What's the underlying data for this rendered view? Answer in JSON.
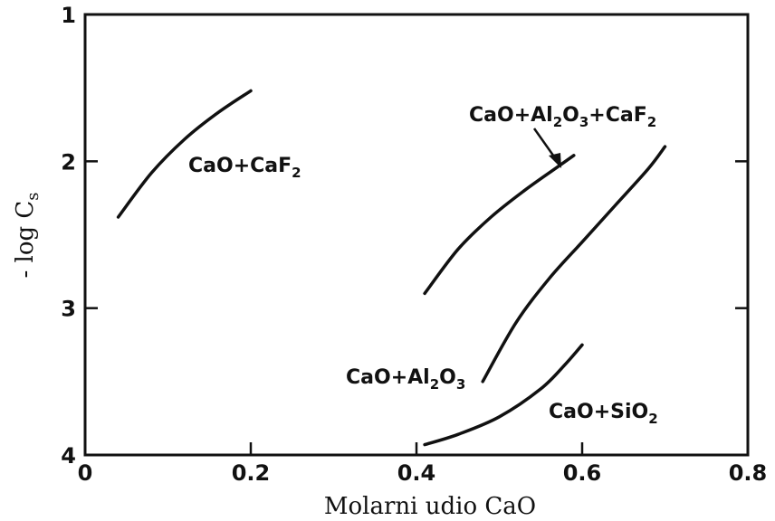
{
  "chart_data": {
    "type": "line",
    "title": "",
    "xlabel": "Molarni udio CaO",
    "ylabel": "- log C",
    "ylabel_subscript": "s",
    "xlim": [
      0,
      0.8
    ],
    "ylim": [
      1,
      4
    ],
    "y_inverted": true,
    "x_ticks": [
      0,
      0.2,
      0.4,
      0.6,
      0.8
    ],
    "x_tick_labels": [
      "0",
      "0.2",
      "0.4",
      "0.6",
      "0.8"
    ],
    "y_ticks": [
      1,
      2,
      3,
      4
    ],
    "y_tick_labels": [
      "1",
      "2",
      "3",
      "4"
    ],
    "grid": false,
    "series": [
      {
        "name": "CaO+CaF2",
        "x": [
          0.04,
          0.08,
          0.12,
          0.16,
          0.2
        ],
        "y": [
          2.38,
          2.08,
          1.85,
          1.67,
          1.52
        ]
      },
      {
        "name": "CaO+Al2O3+CaF2",
        "x": [
          0.41,
          0.45,
          0.49,
          0.53,
          0.57,
          0.59
        ],
        "y": [
          2.9,
          2.6,
          2.38,
          2.2,
          2.04,
          1.96
        ]
      },
      {
        "name": "CaO+Al2O3",
        "x": [
          0.48,
          0.52,
          0.56,
          0.6,
          0.64,
          0.68,
          0.7
        ],
        "y": [
          3.5,
          3.1,
          2.8,
          2.55,
          2.3,
          2.05,
          1.9
        ]
      },
      {
        "name": "CaO+SiO2",
        "x": [
          0.41,
          0.45,
          0.5,
          0.55,
          0.58,
          0.6
        ],
        "y": [
          3.93,
          3.86,
          3.74,
          3.55,
          3.38,
          3.25
        ]
      }
    ],
    "annotations": [
      {
        "text": "CaO+CaF",
        "sub": "2",
        "tail": ""
      },
      {
        "text": "CaO+Al",
        "sub": "2",
        "mid": "O",
        "sub2": "3",
        "tail": "+CaF",
        "sub3": "2"
      },
      {
        "text": "CaO+Al",
        "sub": "2",
        "mid": "O",
        "sub2": "3"
      },
      {
        "text": "CaO+SiO",
        "sub": "2"
      }
    ]
  }
}
